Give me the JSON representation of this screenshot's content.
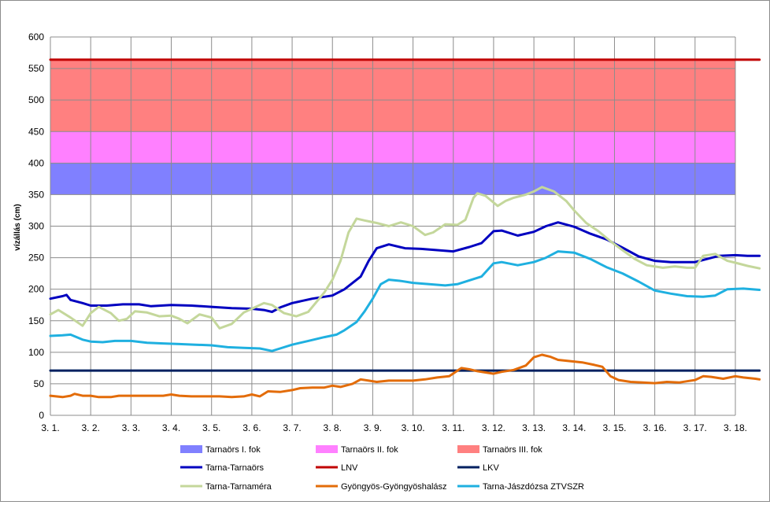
{
  "chart_data": {
    "type": "line",
    "ylabel": "vízállás  (cm)",
    "ylim": [
      0,
      600
    ],
    "yticks": [
      0,
      50,
      100,
      150,
      200,
      250,
      300,
      350,
      400,
      450,
      500,
      550,
      600
    ],
    "xlim": [
      0,
      17
    ],
    "xticks": [
      "3. 1.",
      "3. 2.",
      "3. 3.",
      "3. 4.",
      "3. 5.",
      "3. 6.",
      "3. 7.",
      "3. 8.",
      "3. 9.",
      "3. 10.",
      "3. 11.",
      "3. 12.",
      "3. 13.",
      "3. 14.",
      "3. 15.",
      "3. 16.",
      "3. 17.",
      "3. 18."
    ],
    "grid": true,
    "legend_position": "bottom",
    "bands": [
      {
        "name": "Tarnaörs I. fok",
        "from": 350,
        "to": 400,
        "color": "#8080ff"
      },
      {
        "name": "Tarnaörs II. fok",
        "from": 400,
        "to": 450,
        "color": "#ff80ff"
      },
      {
        "name": "Tarnaörs III. fok",
        "from": 450,
        "to": 565,
        "color": "#ff8080"
      }
    ],
    "series": [
      {
        "name": "Tarna-Tarnaörs",
        "color": "#0000c0",
        "width": 3,
        "points": [
          [
            0,
            185
          ],
          [
            0.3,
            189
          ],
          [
            0.4,
            191
          ],
          [
            0.5,
            183
          ],
          [
            0.8,
            178
          ],
          [
            1.0,
            174
          ],
          [
            1.4,
            174
          ],
          [
            1.8,
            176
          ],
          [
            2.2,
            176
          ],
          [
            2.5,
            173
          ],
          [
            3.0,
            175
          ],
          [
            3.5,
            174
          ],
          [
            4.0,
            172
          ],
          [
            4.5,
            170
          ],
          [
            5.0,
            169
          ],
          [
            5.3,
            167
          ],
          [
            5.5,
            164
          ],
          [
            5.7,
            171
          ],
          [
            6.0,
            178
          ],
          [
            6.5,
            185
          ],
          [
            7.0,
            190
          ],
          [
            7.3,
            200
          ],
          [
            7.7,
            220
          ],
          [
            7.9,
            245
          ],
          [
            8.1,
            265
          ],
          [
            8.4,
            271
          ],
          [
            8.8,
            265
          ],
          [
            9.2,
            264
          ],
          [
            9.6,
            262
          ],
          [
            10.0,
            260
          ],
          [
            10.4,
            267
          ],
          [
            10.7,
            273
          ],
          [
            11.0,
            292
          ],
          [
            11.2,
            293
          ],
          [
            11.6,
            285
          ],
          [
            12.0,
            291
          ],
          [
            12.3,
            300
          ],
          [
            12.6,
            306
          ],
          [
            13.0,
            299
          ],
          [
            13.4,
            288
          ],
          [
            13.8,
            279
          ],
          [
            14.2,
            266
          ],
          [
            14.6,
            252
          ],
          [
            15.0,
            245
          ],
          [
            15.4,
            243
          ],
          [
            15.8,
            243
          ],
          [
            16.0,
            243
          ],
          [
            16.3,
            248
          ],
          [
            16.6,
            253
          ],
          [
            17.0,
            254
          ],
          [
            17.3,
            253
          ],
          [
            17.6,
            253
          ]
        ]
      },
      {
        "name": "LNV",
        "color": "#c00000",
        "width": 3,
        "points": [
          [
            0,
            564
          ],
          [
            17.6,
            564
          ]
        ]
      },
      {
        "name": "LKV",
        "color": "#002060",
        "width": 3,
        "points": [
          [
            0,
            71
          ],
          [
            17.6,
            71
          ]
        ]
      },
      {
        "name": "Tarna-Tarnaméra",
        "color": "#c4d79b",
        "width": 3,
        "points": [
          [
            0,
            160
          ],
          [
            0.2,
            167
          ],
          [
            0.5,
            155
          ],
          [
            0.8,
            142
          ],
          [
            1.0,
            162
          ],
          [
            1.2,
            172
          ],
          [
            1.5,
            162
          ],
          [
            1.7,
            150
          ],
          [
            1.9,
            153
          ],
          [
            2.1,
            165
          ],
          [
            2.4,
            163
          ],
          [
            2.7,
            157
          ],
          [
            3.0,
            158
          ],
          [
            3.2,
            153
          ],
          [
            3.4,
            146
          ],
          [
            3.7,
            160
          ],
          [
            4.0,
            155
          ],
          [
            4.2,
            138
          ],
          [
            4.5,
            145
          ],
          [
            4.8,
            163
          ],
          [
            5.0,
            169
          ],
          [
            5.3,
            178
          ],
          [
            5.5,
            175
          ],
          [
            5.8,
            162
          ],
          [
            6.1,
            157
          ],
          [
            6.4,
            164
          ],
          [
            6.8,
            195
          ],
          [
            7.0,
            215
          ],
          [
            7.2,
            245
          ],
          [
            7.4,
            290
          ],
          [
            7.6,
            312
          ],
          [
            7.8,
            309
          ],
          [
            8.1,
            305
          ],
          [
            8.4,
            300
          ],
          [
            8.7,
            306
          ],
          [
            9.0,
            300
          ],
          [
            9.3,
            286
          ],
          [
            9.5,
            290
          ],
          [
            9.8,
            303
          ],
          [
            10.1,
            302
          ],
          [
            10.3,
            310
          ],
          [
            10.5,
            345
          ],
          [
            10.6,
            352
          ],
          [
            10.8,
            348
          ],
          [
            11.1,
            332
          ],
          [
            11.3,
            340
          ],
          [
            11.5,
            345
          ],
          [
            11.8,
            350
          ],
          [
            12.0,
            355
          ],
          [
            12.2,
            362
          ],
          [
            12.5,
            355
          ],
          [
            12.8,
            340
          ],
          [
            13.0,
            325
          ],
          [
            13.3,
            305
          ],
          [
            13.6,
            292
          ],
          [
            13.9,
            276
          ],
          [
            14.2,
            262
          ],
          [
            14.5,
            248
          ],
          [
            14.8,
            238
          ],
          [
            15.2,
            234
          ],
          [
            15.5,
            236
          ],
          [
            15.8,
            234
          ],
          [
            16.0,
            234
          ],
          [
            16.2,
            253
          ],
          [
            16.5,
            256
          ],
          [
            16.8,
            245
          ],
          [
            17.0,
            242
          ],
          [
            17.3,
            237
          ],
          [
            17.6,
            233
          ]
        ]
      },
      {
        "name": "Gyöngyös-Gyöngyöshalász",
        "color": "#e36c09",
        "width": 3,
        "points": [
          [
            0,
            31
          ],
          [
            0.3,
            29
          ],
          [
            0.5,
            31
          ],
          [
            0.6,
            34
          ],
          [
            0.8,
            31
          ],
          [
            1.0,
            31
          ],
          [
            1.2,
            29
          ],
          [
            1.5,
            29
          ],
          [
            1.7,
            31
          ],
          [
            2.0,
            31
          ],
          [
            2.2,
            31
          ],
          [
            2.5,
            31
          ],
          [
            2.8,
            31
          ],
          [
            3.0,
            33
          ],
          [
            3.2,
            31
          ],
          [
            3.5,
            30
          ],
          [
            3.8,
            30
          ],
          [
            4.2,
            30
          ],
          [
            4.5,
            29
          ],
          [
            4.8,
            30
          ],
          [
            5.0,
            33
          ],
          [
            5.2,
            30
          ],
          [
            5.4,
            38
          ],
          [
            5.7,
            37
          ],
          [
            6.0,
            40
          ],
          [
            6.2,
            43
          ],
          [
            6.5,
            44
          ],
          [
            6.8,
            44
          ],
          [
            7.0,
            47
          ],
          [
            7.2,
            45
          ],
          [
            7.5,
            50
          ],
          [
            7.7,
            57
          ],
          [
            7.9,
            55
          ],
          [
            8.1,
            53
          ],
          [
            8.4,
            55
          ],
          [
            8.7,
            55
          ],
          [
            9.0,
            55
          ],
          [
            9.3,
            57
          ],
          [
            9.6,
            60
          ],
          [
            9.9,
            62
          ],
          [
            10.2,
            75
          ],
          [
            10.4,
            73
          ],
          [
            10.6,
            70
          ],
          [
            10.8,
            68
          ],
          [
            11.0,
            66
          ],
          [
            11.2,
            69
          ],
          [
            11.5,
            72
          ],
          [
            11.8,
            79
          ],
          [
            12.0,
            92
          ],
          [
            12.2,
            96
          ],
          [
            12.4,
            93
          ],
          [
            12.6,
            88
          ],
          [
            12.9,
            86
          ],
          [
            13.2,
            84
          ],
          [
            13.5,
            80
          ],
          [
            13.7,
            77
          ],
          [
            13.9,
            62
          ],
          [
            14.1,
            56
          ],
          [
            14.4,
            53
          ],
          [
            14.7,
            52
          ],
          [
            15.0,
            51
          ],
          [
            15.3,
            53
          ],
          [
            15.6,
            52
          ],
          [
            15.8,
            54
          ],
          [
            16.0,
            56
          ],
          [
            16.2,
            62
          ],
          [
            16.4,
            61
          ],
          [
            16.7,
            58
          ],
          [
            17.0,
            62
          ],
          [
            17.2,
            60
          ],
          [
            17.5,
            58
          ],
          [
            17.6,
            57
          ]
        ]
      },
      {
        "name": "Tarna-Jászdózsa ZTVSZR",
        "color": "#1fb0e0",
        "width": 3,
        "points": [
          [
            0,
            126
          ],
          [
            0.3,
            127
          ],
          [
            0.5,
            128
          ],
          [
            0.8,
            120
          ],
          [
            1.0,
            117
          ],
          [
            1.3,
            116
          ],
          [
            1.6,
            118
          ],
          [
            2.0,
            118
          ],
          [
            2.4,
            115
          ],
          [
            2.8,
            114
          ],
          [
            3.2,
            113
          ],
          [
            3.6,
            112
          ],
          [
            4.0,
            111
          ],
          [
            4.4,
            108
          ],
          [
            4.8,
            107
          ],
          [
            5.2,
            106
          ],
          [
            5.5,
            102
          ],
          [
            5.7,
            106
          ],
          [
            6.0,
            112
          ],
          [
            6.4,
            118
          ],
          [
            6.8,
            124
          ],
          [
            7.1,
            128
          ],
          [
            7.3,
            135
          ],
          [
            7.6,
            148
          ],
          [
            7.8,
            165
          ],
          [
            8.0,
            185
          ],
          [
            8.2,
            208
          ],
          [
            8.4,
            215
          ],
          [
            8.7,
            213
          ],
          [
            9.0,
            210
          ],
          [
            9.4,
            208
          ],
          [
            9.8,
            206
          ],
          [
            10.1,
            208
          ],
          [
            10.4,
            214
          ],
          [
            10.7,
            220
          ],
          [
            11.0,
            241
          ],
          [
            11.2,
            243
          ],
          [
            11.6,
            238
          ],
          [
            12.0,
            243
          ],
          [
            12.3,
            250
          ],
          [
            12.6,
            260
          ],
          [
            13.0,
            258
          ],
          [
            13.4,
            248
          ],
          [
            13.8,
            235
          ],
          [
            14.2,
            225
          ],
          [
            14.6,
            212
          ],
          [
            15.0,
            198
          ],
          [
            15.4,
            193
          ],
          [
            15.8,
            189
          ],
          [
            16.2,
            188
          ],
          [
            16.5,
            190
          ],
          [
            16.8,
            200
          ],
          [
            17.2,
            201
          ],
          [
            17.6,
            199
          ]
        ]
      }
    ],
    "legend": [
      {
        "label": "Tarnaörs I. fok",
        "kind": "box",
        "color": "#8080ff"
      },
      {
        "label": "Tarnaörs II. fok",
        "kind": "box",
        "color": "#ff80ff"
      },
      {
        "label": "Tarnaörs III. fok",
        "kind": "box",
        "color": "#ff8080"
      },
      {
        "label": "Tarna-Tarnaörs",
        "kind": "line",
        "color": "#0000c0"
      },
      {
        "label": "LNV",
        "kind": "line",
        "color": "#c00000"
      },
      {
        "label": "LKV",
        "kind": "line",
        "color": "#002060"
      },
      {
        "label": "Tarna-Tarnaméra",
        "kind": "line",
        "color": "#c4d79b"
      },
      {
        "label": "Gyöngyös-Gyöngyöshalász",
        "kind": "line",
        "color": "#e36c09"
      },
      {
        "label": "Tarna-Jászdózsa ZTVSZR",
        "kind": "line",
        "color": "#1fb0e0"
      }
    ]
  }
}
